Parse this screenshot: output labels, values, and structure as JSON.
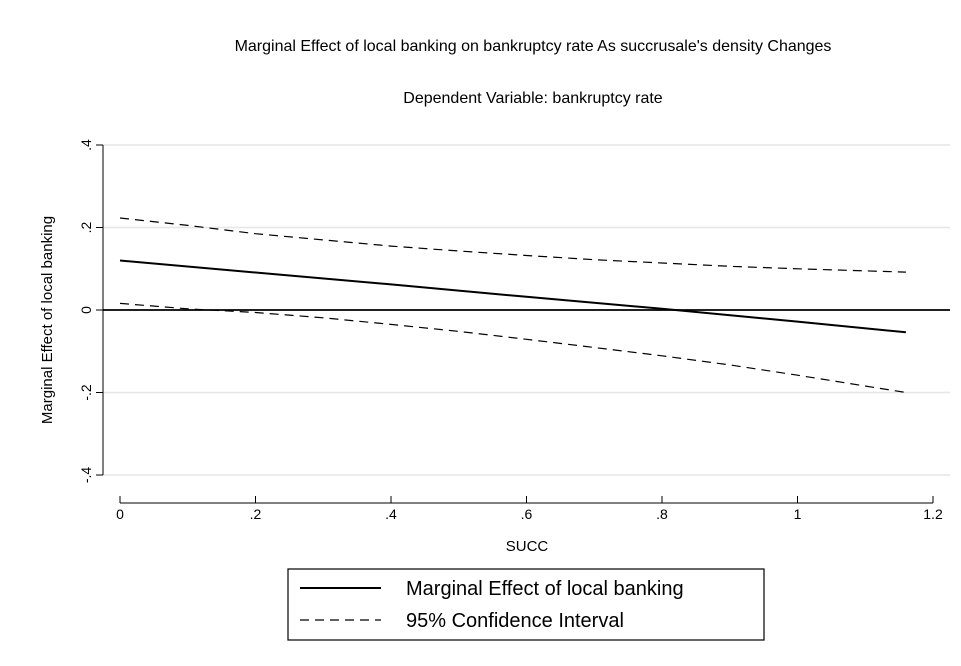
{
  "chart_data": {
    "type": "line",
    "title": "Marginal Effect of local banking on bankruptcy rate As succrusale's density Changes",
    "subtitle": "Dependent Variable: bankruptcy rate",
    "xlabel": "SUCC",
    "ylabel": "Marginal Effect of local banking",
    "xlim": [
      0,
      1.2
    ],
    "ylim": [
      -0.4,
      0.4
    ],
    "x_ticks": [
      {
        "value": 0,
        "label": "0"
      },
      {
        "value": 0.2,
        "label": ".2"
      },
      {
        "value": 0.4,
        "label": ".4"
      },
      {
        "value": 0.6,
        "label": ".6"
      },
      {
        "value": 0.8,
        "label": ".8"
      },
      {
        "value": 1,
        "label": "1"
      },
      {
        "value": 1.2,
        "label": "1.2"
      }
    ],
    "y_ticks": [
      {
        "value": -0.4,
        "label": "-.4"
      },
      {
        "value": -0.2,
        "label": "-.2"
      },
      {
        "value": 0,
        "label": "0"
      },
      {
        "value": 0.2,
        "label": ".2"
      },
      {
        "value": 0.4,
        "label": ".4"
      }
    ],
    "grid": true,
    "reference_line_y": 0,
    "legend_position": "bottom",
    "series": [
      {
        "name": "Marginal Effect of local banking",
        "style": "solid",
        "x": [
          0,
          0.2,
          0.4,
          0.6,
          0.8,
          1.0,
          1.16
        ],
        "y": [
          0.12,
          0.091,
          0.062,
          0.032,
          0.003,
          -0.028,
          -0.054
        ]
      },
      {
        "name": "95% Confidence Interval",
        "style": "dashed",
        "x": [
          0,
          0.1,
          0.2,
          0.3,
          0.4,
          0.5,
          0.6,
          0.7,
          0.8,
          0.9,
          1.0,
          1.16
        ],
        "y": [
          0.223,
          0.205,
          0.185,
          0.17,
          0.155,
          0.143,
          0.132,
          0.122,
          0.114,
          0.106,
          0.1,
          0.092
        ]
      },
      {
        "name": "95% Confidence Interval",
        "style": "dashed",
        "legend": false,
        "x": [
          0,
          0.1,
          0.2,
          0.3,
          0.4,
          0.5,
          0.6,
          0.7,
          0.8,
          0.9,
          1.0,
          1.16
        ],
        "y": [
          0.016,
          0.003,
          -0.006,
          -0.019,
          -0.035,
          -0.052,
          -0.071,
          -0.091,
          -0.111,
          -0.133,
          -0.158,
          -0.2
        ]
      }
    ]
  }
}
